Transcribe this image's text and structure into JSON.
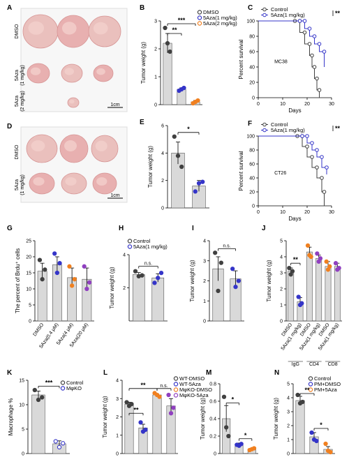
{
  "colors": {
    "control": "#404040",
    "c1": "#3535c8",
    "c2": "#f08020",
    "c3": "#9040c0",
    "bar": "#d9d9d9",
    "tissue": "#e8b9b9"
  },
  "photos": [
    {
      "label": "A",
      "rows": [
        "DMSO",
        "5Aza\n(1 mg/kg)",
        "5Aza\n(2 mg/kg)"
      ],
      "scale": "1cm"
    },
    {
      "label": "D",
      "rows": [
        "DMSO",
        "5Aza\n(1 mg/kg)"
      ],
      "scale": "1cm"
    }
  ],
  "chart_data": [
    {
      "id": "B",
      "type": "bar",
      "ylabel": "Tumor weight (g)",
      "ylim": [
        0,
        3
      ],
      "yticks": [
        0,
        1,
        2,
        3
      ],
      "legend": [
        "DMSO",
        "5Aza(1 mg/kg)",
        "5Aza(2 mg/kg)"
      ],
      "values": [
        2.2,
        0.55,
        0.1
      ],
      "errors": [
        0.35,
        0.05,
        0.05
      ],
      "points": [
        [
          2.75,
          2.2,
          1.9
        ],
        [
          0.5,
          0.55,
          0.6
        ],
        [
          0.05,
          0.1,
          0.15
        ]
      ],
      "sig": [
        "**",
        "***"
      ]
    },
    {
      "id": "C",
      "type": "line",
      "xlabel": "Days",
      "ylabel": "Percent survival",
      "ylim": [
        0,
        100
      ],
      "xlim": [
        0,
        30
      ],
      "xticks": [
        0,
        10,
        20,
        30
      ],
      "yticks": [
        0,
        20,
        40,
        60,
        80,
        100
      ],
      "legend": [
        "Control",
        "5Aza(1 mg/kg)"
      ],
      "annotation": "MC38",
      "sig": "**",
      "series": [
        {
          "name": "Control",
          "x": [
            0,
            15,
            17,
            19,
            21,
            22,
            23,
            24,
            25
          ],
          "y": [
            100,
            100,
            85,
            70,
            55,
            40,
            25,
            10,
            0
          ]
        },
        {
          "name": "5Aza(1 mg/kg)",
          "x": [
            0,
            17,
            19,
            21,
            23,
            25,
            27
          ],
          "y": [
            100,
            100,
            90,
            80,
            70,
            60,
            40
          ]
        }
      ]
    },
    {
      "id": "E",
      "type": "bar",
      "ylabel": "Tumor weight (g)",
      "ylim": [
        0,
        6
      ],
      "yticks": [
        0,
        2,
        4,
        6
      ],
      "values": [
        4,
        1.6
      ],
      "errors": [
        0.8,
        0.4
      ],
      "points": [
        [
          5.2,
          3.8,
          3.0
        ],
        [
          1.2,
          1.8,
          1.9
        ]
      ],
      "sig": [
        "*"
      ]
    },
    {
      "id": "F",
      "type": "line",
      "xlabel": "Days",
      "ylabel": "Percent survival",
      "ylim": [
        0,
        100
      ],
      "xlim": [
        0,
        30
      ],
      "xticks": [
        0,
        10,
        20,
        30
      ],
      "yticks": [
        0,
        20,
        40,
        60,
        80,
        100
      ],
      "legend": [
        "Control",
        "5Aza(1 mg/kg)"
      ],
      "annotation": "CT26",
      "sig": "**",
      "series": [
        {
          "name": "Control",
          "x": [
            0,
            16,
            18,
            20,
            22,
            24,
            26,
            27
          ],
          "y": [
            100,
            100,
            85,
            70,
            55,
            40,
            20,
            0
          ]
        },
        {
          "name": "5Aza(1 mg/kg)",
          "x": [
            0,
            18,
            20,
            22,
            24,
            26,
            28
          ],
          "y": [
            100,
            100,
            90,
            80,
            70,
            55,
            45
          ]
        }
      ]
    },
    {
      "id": "G",
      "type": "bar",
      "ylabel": "The percent of Brdu⁺ cells",
      "ylim": [
        0,
        25
      ],
      "yticks": [
        0,
        5,
        10,
        15,
        20,
        25
      ],
      "categories": [
        "DMSO",
        "5Aza(0.4 μM)",
        "5Aza(4 μM)",
        "5Aza(20 μM)"
      ],
      "values": [
        15.5,
        17.5,
        13.5,
        13
      ],
      "errors": [
        2.5,
        2.5,
        3,
        3.5
      ],
      "points": [
        [
          19,
          13,
          16
        ],
        [
          21,
          15,
          18
        ],
        [
          17,
          11,
          13
        ],
        [
          17,
          10,
          12
        ]
      ]
    },
    {
      "id": "H",
      "type": "bar",
      "ylabel": "Tumor weight (g)",
      "ylim": [
        0,
        4
      ],
      "yticks": [
        2,
        4
      ],
      "legend": [
        "Control",
        "5Aza(1 mg/kg)"
      ],
      "values": [
        2.8,
        2.6
      ],
      "errors": [
        0.12,
        0.25
      ],
      "points": [
        [
          3.0,
          2.7,
          2.75
        ],
        [
          2.3,
          2.6,
          2.9
        ]
      ],
      "sig": [
        "n.s."
      ]
    },
    {
      "id": "I",
      "type": "bar",
      "ylabel": "Tumor weight (g)",
      "ylim": [
        0,
        4
      ],
      "yticks": [
        0,
        1,
        2,
        3,
        4
      ],
      "values": [
        2.6,
        2.1
      ],
      "errors": [
        0.6,
        0.4
      ],
      "points": [
        [
          3.4,
          1.5,
          2.9
        ],
        [
          2.6,
          1.7,
          2.0
        ]
      ],
      "sig": [
        "n.s."
      ]
    },
    {
      "id": "J",
      "type": "bar",
      "ylabel": "Tumor weight (g)",
      "ylim": [
        0,
        5
      ],
      "yticks": [
        0,
        1,
        2,
        3,
        4,
        5
      ],
      "categories": [
        "DMSO",
        "5Aza(1 mg/kg)",
        "DMSO",
        "5Aza(1 mg/kg)",
        "DMSO",
        "5Aza(1 mg/kg)"
      ],
      "groups": [
        "IgG",
        "CD4",
        "CD8"
      ],
      "values": [
        3.1,
        1.2,
        4.3,
        3.9,
        3.4,
        3.4
      ],
      "errors": [
        0.2,
        0.25,
        0.3,
        0.2,
        0.3,
        0.2
      ],
      "points": [
        [
          3.3,
          2.9,
          3.1
        ],
        [
          1.5,
          1.0,
          1.1
        ],
        [
          4.7,
          4.1,
          4.0
        ],
        [
          4.2,
          3.7,
          3.9
        ],
        [
          3.7,
          3.2,
          3.4
        ],
        [
          3.6,
          3.2,
          3.3
        ]
      ],
      "sig": [
        "**"
      ]
    },
    {
      "id": "K",
      "type": "bar",
      "ylabel": "Macrophage %",
      "ylim": [
        0,
        15
      ],
      "yticks": [
        0,
        5,
        10,
        15
      ],
      "legend": [
        "Control",
        "MφKO"
      ],
      "values": [
        12,
        2
      ],
      "errors": [
        0.8,
        0.6
      ],
      "points": [
        [
          13,
          11,
          11.5
        ],
        [
          2.5,
          1.3,
          2.1
        ]
      ],
      "sig": [
        "***"
      ]
    },
    {
      "id": "L",
      "type": "bar",
      "ylabel": "Tumor weight (g)",
      "ylim": [
        0,
        4
      ],
      "yticks": [
        0,
        1,
        2,
        3,
        4
      ],
      "legend": [
        "WT-DMSO",
        "WT-5Aza",
        "MφKO-DMSO",
        "MφKO-5Aza"
      ],
      "values": [
        2.7,
        1.4,
        3.2,
        2.6
      ],
      "errors": [
        0.1,
        0.2,
        0.05,
        0.4
      ],
      "points": [
        [
          2.8,
          2.6,
          2.7
        ],
        [
          1.7,
          1.2,
          1.3
        ],
        [
          3.3,
          3.2,
          3.1
        ],
        [
          3.2,
          2.2,
          2.5
        ]
      ],
      "sig": [
        "**",
        "**",
        "n.s."
      ]
    },
    {
      "id": "M",
      "type": "bar",
      "ylabel": "Tumor weight (g)",
      "ylim": [
        0,
        0.8
      ],
      "yticks": [
        0,
        0.2,
        0.4,
        0.6,
        0.8
      ],
      "values": [
        0.4,
        0.1,
        0.05
      ],
      "errors": [
        0.15,
        0.02,
        0.01
      ],
      "points": [
        [
          0.65,
          0.3,
          0.2
        ],
        [
          0.1,
          0.09,
          0.11
        ],
        [
          0.04,
          0.05,
          0.06
        ]
      ],
      "sig": [
        "*",
        "*"
      ]
    },
    {
      "id": "N",
      "type": "bar",
      "ylabel": "Tumor weight (g)",
      "ylim": [
        0,
        5
      ],
      "yticks": [
        0,
        1,
        2,
        3,
        4,
        5
      ],
      "legend": [
        "Control",
        "PM+DMSO",
        "PM+5Aza"
      ],
      "values": [
        3.8,
        1.2,
        0.3
      ],
      "errors": [
        0.3,
        0.3,
        0.2
      ],
      "points": [
        [
          4.2,
          3.6,
          3.7
        ],
        [
          1.5,
          1.0,
          0.9
        ],
        [
          0.7,
          0.2,
          0.1
        ]
      ],
      "sig": [
        "**",
        "*"
      ]
    }
  ]
}
